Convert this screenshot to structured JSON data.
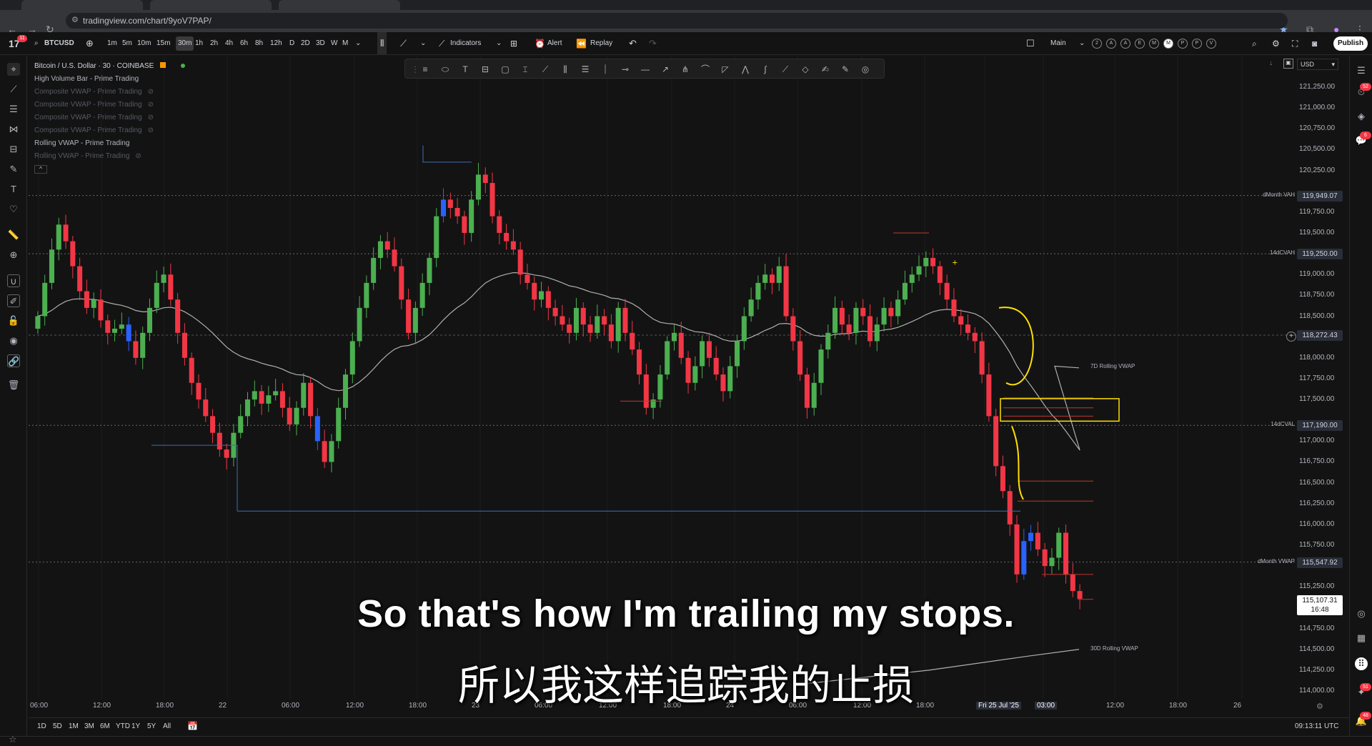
{
  "browser": {
    "url": "tradingview.com/chart/9yoV7PAP/"
  },
  "toolbar": {
    "symbol": "BTCUSD",
    "timeframes": [
      "1m",
      "5m",
      "10m",
      "15m",
      "30m",
      "1h",
      "2h",
      "4h",
      "6h",
      "8h",
      "12h",
      "D",
      "2D",
      "3D",
      "W",
      "M"
    ],
    "active_timeframe": "30m",
    "indicators_label": "Indicators",
    "alert_label": "Alert",
    "replay_label": "Replay",
    "layout_label": "Main",
    "layout_circles": [
      "2",
      "A",
      "A",
      "E",
      "M",
      "M",
      "P",
      "P",
      "V"
    ],
    "publish_label": "Publish"
  },
  "legend": {
    "title": "Bitcoin / U.S. Dollar · 30 · COINBASE",
    "rows": [
      {
        "text": "High Volume Bar - Prime Trading",
        "dim": false
      },
      {
        "text": "Composite VWAP - Prime Trading",
        "dim": true
      },
      {
        "text": "Composite VWAP - Prime Trading",
        "dim": true
      },
      {
        "text": "Composite VWAP - Prime Trading",
        "dim": true
      },
      {
        "text": "Composite VWAP - Prime Trading",
        "dim": true
      },
      {
        "text": "Rolling VWAP - Prime Trading",
        "dim": false
      },
      {
        "text": "Rolling VWAP - Prime Trading",
        "dim": true
      }
    ]
  },
  "price_axis": {
    "currency": "USD",
    "labels": [
      "121,250.00",
      "121,000.00",
      "120,750.00",
      "120,500.00",
      "120,250.00",
      "119,750.00",
      "119,500.00",
      "119,000.00",
      "118,750.00",
      "118,500.00",
      "118,000.00",
      "117,750.00",
      "117,500.00",
      "117,000.00",
      "116,750.00",
      "116,500.00",
      "116,250.00",
      "116,000.00",
      "115,750.00",
      "115,250.00",
      "114,750.00",
      "114,500.00",
      "114,250.00",
      "114,000.00"
    ],
    "tags": [
      {
        "label": "dMonth VAH",
        "price": "119,949.07"
      },
      {
        "label": "14dCVAH",
        "price": "119,250.00"
      },
      {
        "label": "",
        "price": "118,272.43"
      },
      {
        "label": "14dCVAL",
        "price": "117,190.00"
      },
      {
        "label": "dMonth VWAP",
        "price": "115,547.92"
      }
    ],
    "last_price": "115,107.31",
    "countdown": "16:48"
  },
  "chart_labels": {
    "rolling_7d": "7D Rolling VWAP",
    "rolling_30d": "30D Rolling VWAP"
  },
  "time_axis": {
    "labels": [
      "06:00",
      "12:00",
      "18:00",
      "22",
      "06:00",
      "12:00",
      "18:00",
      "23",
      "06:00",
      "12:00",
      "18:00",
      "24",
      "06:00",
      "12:00",
      "18:00",
      "Fri 25 Jul '25",
      "03:00",
      "12:00",
      "18:00",
      "26"
    ]
  },
  "bottom": {
    "ranges": [
      "1D",
      "5D",
      "1M",
      "3M",
      "6M",
      "YTD",
      "1Y",
      "5Y",
      "All"
    ],
    "clock": "09:13:11 UTC"
  },
  "subtitles": {
    "english": "So that's how I'm trailing my stops.",
    "chinese": "所以我这样追踪我的止损"
  },
  "badges": {
    "logo_count": "11",
    "alerts_count": "52",
    "notifications_count": "6",
    "bottom1": "51",
    "bottom2": "48"
  },
  "colors": {
    "up": "#4caf50",
    "down": "#f23645",
    "blue": "#2962ff",
    "annotation": "#ffe000",
    "vwap": "#b0b0b0"
  },
  "chart_data": {
    "type": "candlestick",
    "symbol": "Bitcoin / U.S. Dollar",
    "interval": "30",
    "exchange": "COINBASE",
    "ylim": [
      114000,
      121400
    ],
    "levels": [
      {
        "name": "dMonth VAH",
        "value": 119949.07
      },
      {
        "name": "14dCVAH",
        "value": 119250.0
      },
      {
        "name": "14dCVAL",
        "value": 117190.0
      },
      {
        "name": "dMonth VWAP",
        "value": 115547.92
      }
    ],
    "closes": [
      118500,
      118900,
      119300,
      119600,
      119400,
      119100,
      118800,
      118600,
      118700,
      118450,
      118300,
      118350,
      118400,
      118200,
      118000,
      118300,
      118600,
      118900,
      119000,
      118700,
      118300,
      118000,
      117700,
      117500,
      117300,
      117100,
      116900,
      116800,
      117100,
      117300,
      117500,
      117600,
      117450,
      117550,
      117600,
      117400,
      117200,
      117400,
      117700,
      117300,
      117000,
      116750,
      117000,
      117400,
      117800,
      118200,
      118600,
      118900,
      119200,
      119400,
      119300,
      119100,
      118700,
      118300,
      118600,
      118900,
      119200,
      119700,
      119900,
      119800,
      119700,
      119500,
      119900,
      120200,
      120100,
      119700,
      119500,
      119400,
      119300,
      119000,
      118900,
      118700,
      118800,
      118600,
      118500,
      118400,
      118300,
      118600,
      118400,
      118300,
      118500,
      118400,
      118200,
      118600,
      118300,
      118100,
      117800,
      117400,
      117500,
      117800,
      118200,
      118300,
      118000,
      117700,
      117900,
      118200,
      118000,
      117800,
      117600,
      117900,
      118200,
      118500,
      118700,
      118900,
      119000,
      118900,
      119100,
      118500,
      118200,
      117800,
      117400,
      117700,
      118100,
      118300,
      118600,
      118400,
      118300,
      118600,
      118500,
      118200,
      118400,
      118600,
      118500,
      118700,
      118900,
      119000,
      119100,
      119200,
      119100,
      118900,
      118700,
      118500,
      118400,
      118300,
      118200,
      117800,
      117300,
      116700,
      116400,
      116000,
      115400,
      115800,
      115900,
      115700,
      115500,
      115600,
      115900,
      115400,
      115200,
      115107.31
    ]
  }
}
